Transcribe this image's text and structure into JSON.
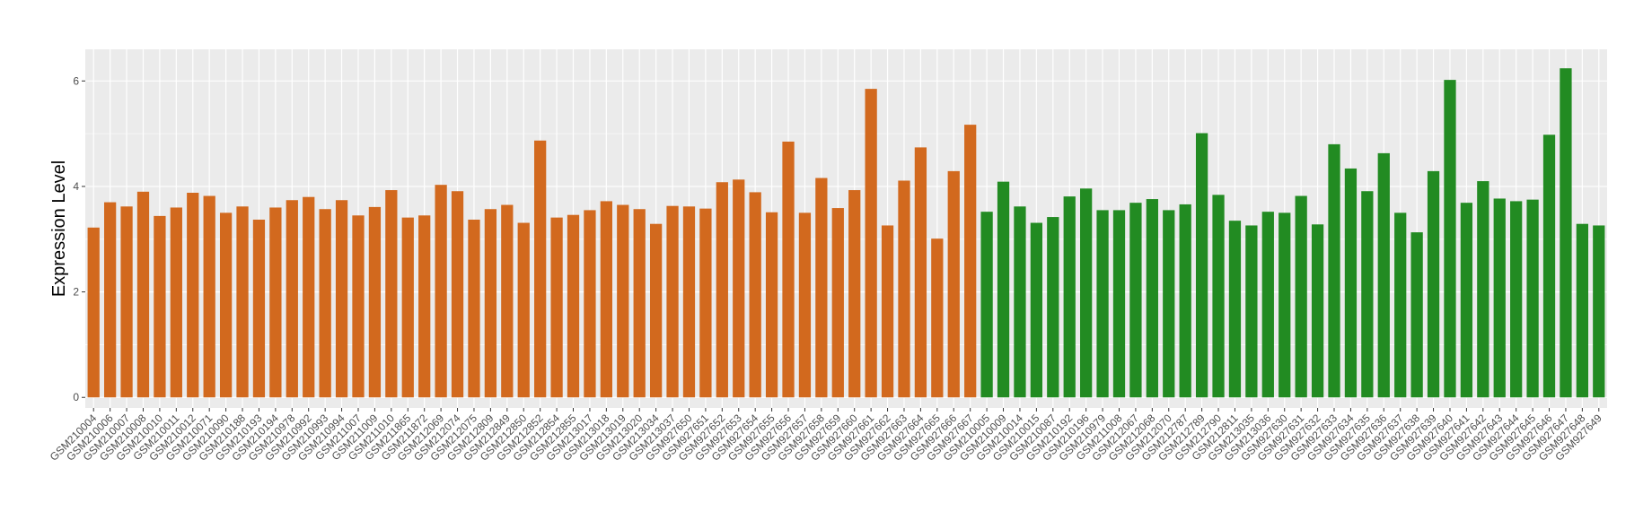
{
  "chart_data": {
    "type": "bar",
    "title": "",
    "xlabel": "",
    "ylabel": "Expression Level",
    "ylim": [
      -0.2,
      6.6
    ],
    "yticks": [
      0,
      2,
      4,
      6
    ],
    "grid": true,
    "legend": "none",
    "colors": {
      "group1": "#D2691E",
      "group2": "#228B22",
      "panel_bg": "#EBEBEB",
      "grid": "#FFFFFF"
    },
    "categories": [
      "GSM210004",
      "GSM210006",
      "GSM210007",
      "GSM210008",
      "GSM210010",
      "GSM210011",
      "GSM210012",
      "GSM210071",
      "GSM210090",
      "GSM210188",
      "GSM210193",
      "GSM210194",
      "GSM210978",
      "GSM210992",
      "GSM210993",
      "GSM210994",
      "GSM211007",
      "GSM211009",
      "GSM211010",
      "GSM211865",
      "GSM211872",
      "GSM212069",
      "GSM212074",
      "GSM212075",
      "GSM212809",
      "GSM212849",
      "GSM212850",
      "GSM212852",
      "GSM212854",
      "GSM212855",
      "GSM213017",
      "GSM213018",
      "GSM213019",
      "GSM213020",
      "GSM213034",
      "GSM213037",
      "GSM927650",
      "GSM927651",
      "GSM927652",
      "GSM927653",
      "GSM927654",
      "GSM927655",
      "GSM927656",
      "GSM927657",
      "GSM927658",
      "GSM927659",
      "GSM927660",
      "GSM927661",
      "GSM927662",
      "GSM927663",
      "GSM927664",
      "GSM927665",
      "GSM927666",
      "GSM927667",
      "GSM210005",
      "GSM210009",
      "GSM210014",
      "GSM210015",
      "GSM210087",
      "GSM210192",
      "GSM210196",
      "GSM210979",
      "GSM211008",
      "GSM212067",
      "GSM212068",
      "GSM212070",
      "GSM212787",
      "GSM212789",
      "GSM212790",
      "GSM212811",
      "GSM213035",
      "GSM213036",
      "GSM927630",
      "GSM927631",
      "GSM927632",
      "GSM927633",
      "GSM927634",
      "GSM927635",
      "GSM927636",
      "GSM927637",
      "GSM927638",
      "GSM927639",
      "GSM927640",
      "GSM927641",
      "GSM927642",
      "GSM927643",
      "GSM927644",
      "GSM927645",
      "GSM927646",
      "GSM927647",
      "GSM927648",
      "GSM927649"
    ],
    "values": [
      3.22,
      3.7,
      3.62,
      3.9,
      3.44,
      3.6,
      3.88,
      3.82,
      3.5,
      3.62,
      3.37,
      3.6,
      3.74,
      3.8,
      3.57,
      3.74,
      3.45,
      3.61,
      3.93,
      3.41,
      3.45,
      4.03,
      3.91,
      3.37,
      3.57,
      3.65,
      3.31,
      4.87,
      3.41,
      3.46,
      3.55,
      3.72,
      3.65,
      3.57,
      3.29,
      3.63,
      3.62,
      3.58,
      4.08,
      4.13,
      3.89,
      3.51,
      4.85,
      3.5,
      4.16,
      3.59,
      3.93,
      5.85,
      3.26,
      4.11,
      4.74,
      3.01,
      4.29,
      5.17,
      3.52,
      4.09,
      3.62,
      3.31,
      3.42,
      3.81,
      3.96,
      3.55,
      3.55,
      3.69,
      3.76,
      3.55,
      3.66,
      5.01,
      3.84,
      3.35,
      3.26,
      3.52,
      3.5,
      3.82,
      3.28,
      4.8,
      4.34,
      3.91,
      4.63,
      3.5,
      3.13,
      4.29,
      6.02,
      3.69,
      4.1,
      3.77,
      3.72,
      3.75,
      4.98,
      6.24,
      3.29,
      3.26
    ],
    "groups": [
      1,
      1,
      1,
      1,
      1,
      1,
      1,
      1,
      1,
      1,
      1,
      1,
      1,
      1,
      1,
      1,
      1,
      1,
      1,
      1,
      1,
      1,
      1,
      1,
      1,
      1,
      1,
      1,
      1,
      1,
      1,
      1,
      1,
      1,
      1,
      1,
      1,
      1,
      1,
      1,
      1,
      1,
      1,
      1,
      1,
      1,
      1,
      1,
      1,
      1,
      1,
      1,
      1,
      1,
      2,
      2,
      2,
      2,
      2,
      2,
      2,
      2,
      2,
      2,
      2,
      2,
      2,
      2,
      2,
      2,
      2,
      2,
      2,
      2,
      2,
      2,
      2,
      2,
      2,
      2,
      2,
      2,
      2,
      2,
      2,
      2,
      2,
      2,
      2,
      2,
      2,
      2
    ]
  }
}
